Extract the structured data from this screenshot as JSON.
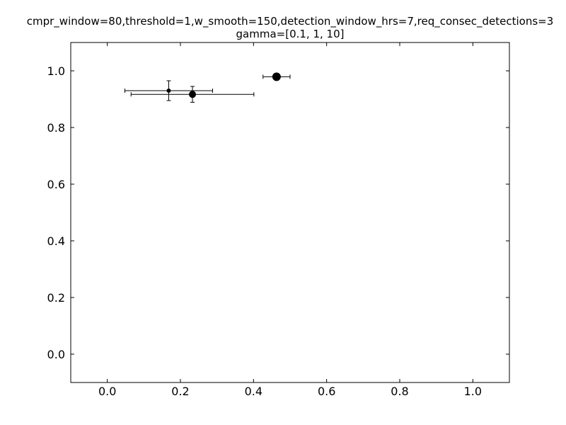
{
  "chart_data": {
    "type": "scatter",
    "title_line1": "cmpr_window=80,threshold=1,w_smooth=150,detection_window_hrs=7,req_consec_detections=3",
    "title_line2": "gamma=[0.1, 1, 10]",
    "xlabel": "",
    "ylabel": "",
    "xlim": [
      -0.1,
      1.1
    ],
    "ylim": [
      -0.1,
      1.1
    ],
    "xticks": [
      "0.0",
      "0.2",
      "0.4",
      "0.6",
      "0.8",
      "1.0"
    ],
    "yticks": [
      "0.0",
      "0.2",
      "0.4",
      "0.6",
      "0.8",
      "1.0"
    ],
    "grid": false,
    "legend": "none",
    "marker_color": "#000000",
    "points": [
      {
        "gamma": "0.1",
        "x": 0.168,
        "y": 0.93,
        "xerr": 0.12,
        "yerr": 0.035,
        "marker": "small"
      },
      {
        "gamma": "1",
        "x": 0.233,
        "y": 0.917,
        "xerr": 0.168,
        "yerr": 0.028,
        "marker": "medium"
      },
      {
        "gamma": "10",
        "x": 0.463,
        "y": 0.979,
        "xerr": 0.037,
        "yerr": 0.012,
        "marker": "large"
      }
    ]
  }
}
